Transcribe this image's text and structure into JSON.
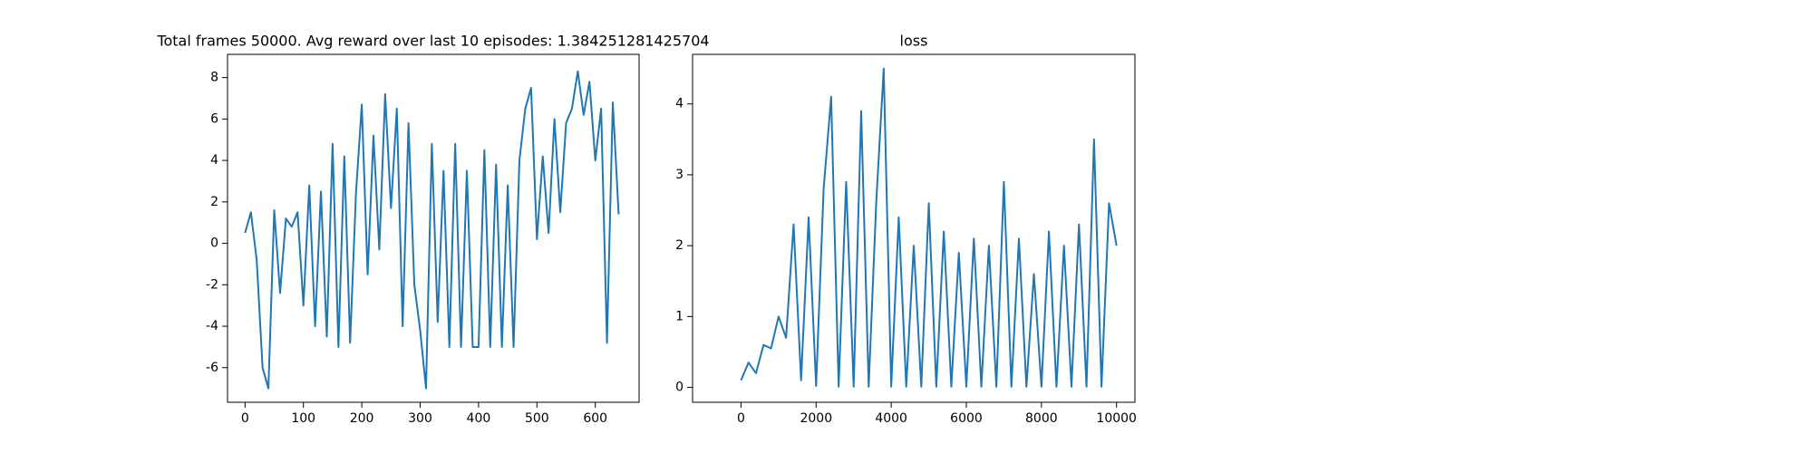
{
  "chart_data": [
    {
      "type": "line",
      "title": "Total frames 50000. Avg reward over last 10 episodes: 1.384251281425704",
      "x": [
        0,
        10,
        20,
        30,
        40,
        50,
        60,
        70,
        80,
        90,
        100,
        110,
        120,
        130,
        140,
        150,
        160,
        170,
        180,
        190,
        200,
        210,
        220,
        230,
        240,
        250,
        260,
        270,
        280,
        290,
        300,
        310,
        320,
        330,
        340,
        350,
        360,
        370,
        380,
        390,
        400,
        410,
        420,
        430,
        440,
        450,
        460,
        470,
        480,
        490,
        500,
        510,
        520,
        530,
        540,
        550,
        560,
        570,
        580,
        590,
        600,
        610,
        620,
        630,
        640
      ],
      "series": [
        {
          "color": "#1f77b4",
          "values": [
            0.5,
            1.5,
            -0.8,
            -6,
            -7,
            1.6,
            -2.4,
            1.2,
            0.8,
            1.5,
            -3,
            2.8,
            -4,
            2.5,
            -4.5,
            4.8,
            -5,
            4.2,
            -4.8,
            2.4,
            6.7,
            -1.5,
            5.2,
            -0.3,
            7.2,
            1.7,
            6.5,
            -4,
            5.8,
            -2,
            -4.2,
            -7,
            4.8,
            -3.8,
            3.5,
            -5,
            4.8,
            -5,
            3.5,
            -5,
            -5,
            4.5,
            -5,
            3.8,
            -5,
            2.8,
            -5,
            4,
            6.5,
            7.5,
            0.2,
            4.2,
            0.5,
            6,
            1.5,
            5.8,
            6.5,
            8.3,
            6.2,
            7.8,
            4,
            6.5,
            -4.8,
            6.8,
            1.4
          ]
        }
      ],
      "xlim": [
        -30,
        675
      ],
      "ylim": [
        -7.67,
        9.12
      ],
      "xticks": [
        0,
        100,
        200,
        300,
        400,
        500,
        600
      ],
      "yticks": [
        -6,
        -4,
        -2,
        0,
        2,
        4,
        6,
        8
      ]
    },
    {
      "type": "line",
      "title": "loss",
      "x": [
        0,
        200,
        400,
        600,
        800,
        1000,
        1200,
        1400,
        1600,
        1800,
        2000,
        2200,
        2400,
        2600,
        2800,
        3000,
        3200,
        3400,
        3600,
        3800,
        4000,
        4200,
        4400,
        4600,
        4800,
        5000,
        5200,
        5400,
        5600,
        5800,
        6000,
        6200,
        6400,
        6600,
        6800,
        7000,
        7200,
        7400,
        7600,
        7800,
        8000,
        8200,
        8400,
        8600,
        8800,
        9000,
        9200,
        9400,
        9600,
        9800,
        10000
      ],
      "series": [
        {
          "color": "#1f77b4",
          "values": [
            0.1,
            0.35,
            0.2,
            0.6,
            0.55,
            1.0,
            0.7,
            2.3,
            0.1,
            2.4,
            0.02,
            2.8,
            4.1,
            0.01,
            2.9,
            0.01,
            3.9,
            0.01,
            2.6,
            4.5,
            0.01,
            2.4,
            0.01,
            2.0,
            0.01,
            2.6,
            0.01,
            2.2,
            0.01,
            1.9,
            0.01,
            2.1,
            0.01,
            2.0,
            0.01,
            2.9,
            0.01,
            2.1,
            0.01,
            1.6,
            0.01,
            2.2,
            0.01,
            2.0,
            0.01,
            2.3,
            0.01,
            3.5,
            0.01,
            2.6,
            2.0
          ]
        }
      ],
      "xlim": [
        -1290,
        10490
      ],
      "ylim": [
        -0.21,
        4.7
      ],
      "xticks": [
        0,
        2000,
        4000,
        6000,
        8000,
        10000
      ],
      "yticks": [
        0,
        1,
        2,
        3,
        4
      ]
    }
  ]
}
